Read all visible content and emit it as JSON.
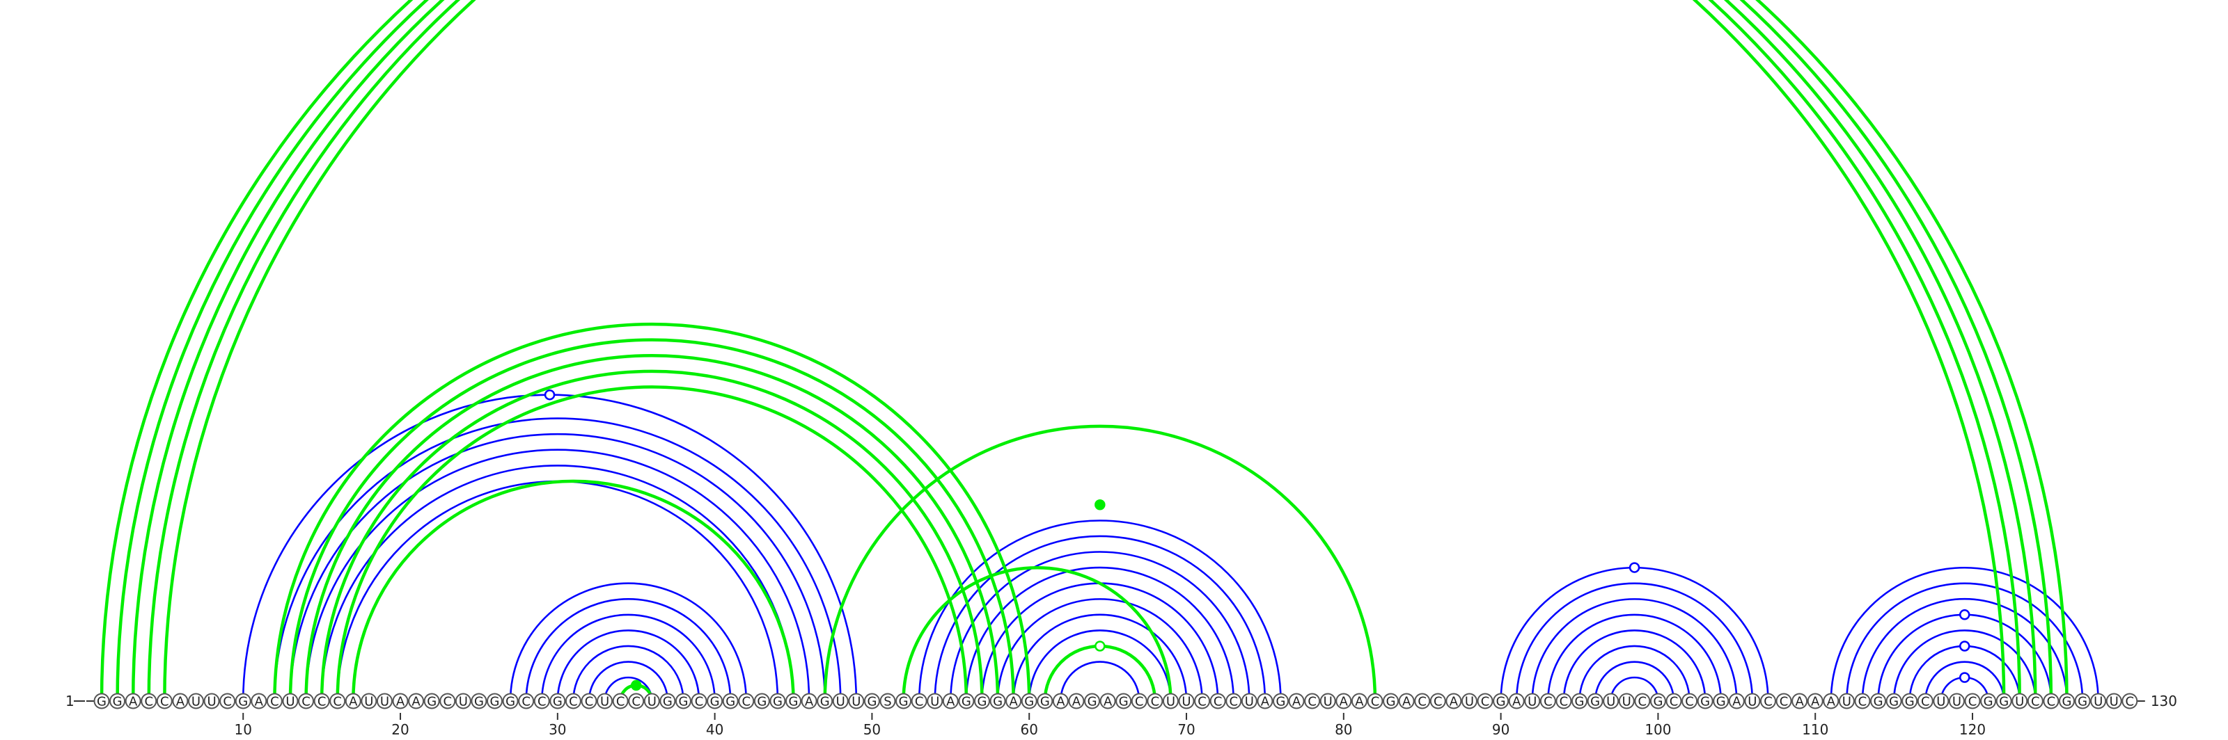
{
  "chart_data": {
    "type": "arc",
    "sequence": "GGACCAUUCGACUCCCAUUAAGCUGGGCCGCCUCCUGGCGGCGGGAGUUGSGCUAGGGAGGAAGAGCCUUCCCUAGACUAACGACCAUCGAUCCGGUUCGCCGGAUCCAAAUCGGGCUUCGGUCCGGUUC",
    "start_label": "1",
    "end_label": "130",
    "ticks": [
      {
        "pos": 10,
        "label": "10"
      },
      {
        "pos": 20,
        "label": "20"
      },
      {
        "pos": 30,
        "label": "30"
      },
      {
        "pos": 40,
        "label": "40"
      },
      {
        "pos": 50,
        "label": "50"
      },
      {
        "pos": 60,
        "label": "60"
      },
      {
        "pos": 70,
        "label": "70"
      },
      {
        "pos": 80,
        "label": "80"
      },
      {
        "pos": 90,
        "label": "90"
      },
      {
        "pos": 100,
        "label": "100"
      },
      {
        "pos": 110,
        "label": "110"
      },
      {
        "pos": 120,
        "label": "120"
      }
    ],
    "series": [
      {
        "color": "#0000ff",
        "pairs": [
          [
            10,
            49
          ],
          [
            12,
            48
          ],
          [
            13,
            47
          ],
          [
            14,
            46
          ],
          [
            15,
            45
          ],
          [
            16,
            44
          ],
          [
            27,
            42
          ],
          [
            28,
            41
          ],
          [
            29,
            40
          ],
          [
            30,
            39
          ],
          [
            31,
            38
          ],
          [
            32,
            37
          ],
          [
            33,
            36
          ],
          [
            53,
            76
          ],
          [
            54,
            75
          ],
          [
            55,
            74
          ],
          [
            56,
            73
          ],
          [
            57,
            72
          ],
          [
            58,
            71
          ],
          [
            59,
            70
          ],
          [
            60,
            69
          ],
          [
            61,
            68
          ],
          [
            62,
            67
          ],
          [
            90,
            107
          ],
          [
            91,
            106
          ],
          [
            92,
            105
          ],
          [
            93,
            104
          ],
          [
            94,
            103
          ],
          [
            95,
            102
          ],
          [
            96,
            101
          ],
          [
            97,
            100
          ],
          [
            111,
            128
          ],
          [
            112,
            127
          ],
          [
            113,
            126
          ],
          [
            114,
            125
          ],
          [
            115,
            124
          ],
          [
            116,
            123
          ],
          [
            117,
            122
          ],
          [
            118,
            121
          ]
        ],
        "dots": [
          {
            "pos": 29.5,
            "filled": false
          },
          {
            "pos": 98.5,
            "filled": false
          },
          {
            "pos": 119.5,
            "filled": false,
            "pair": [
              114,
              125
            ]
          },
          {
            "pos": 119.5,
            "filled": false,
            "pair": [
              116,
              123
            ]
          },
          {
            "pos": 119.5,
            "filled": false,
            "pair": [
              118,
              121
            ]
          }
        ]
      },
      {
        "color": "#00ee00",
        "pairs": [
          [
            1,
            122
          ],
          [
            2,
            123
          ],
          [
            3,
            124
          ],
          [
            4,
            125
          ],
          [
            5,
            126
          ],
          [
            12,
            60
          ],
          [
            13,
            59
          ],
          [
            14,
            58
          ],
          [
            15,
            57
          ],
          [
            16,
            56
          ],
          [
            17,
            45
          ],
          [
            47,
            82
          ],
          [
            52,
            69
          ],
          [
            61,
            68
          ],
          [
            34,
            36
          ]
        ],
        "dots": [
          {
            "pos": 35,
            "filled": true
          },
          {
            "pos": 64.5,
            "filled": true,
            "pair": [
              52,
              77
            ]
          },
          {
            "pos": 64.5,
            "filled": false,
            "pair": [
              61,
              68
            ]
          }
        ]
      }
    ]
  }
}
